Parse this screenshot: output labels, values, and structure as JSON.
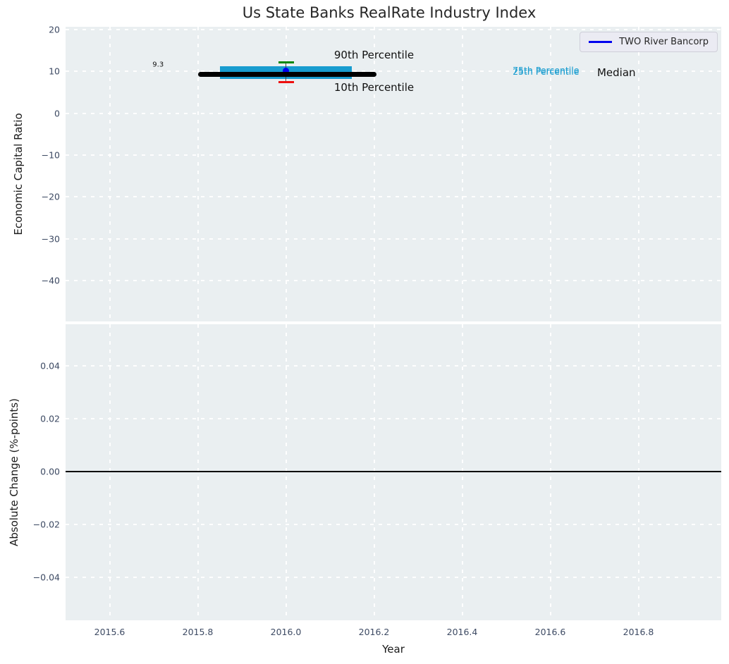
{
  "figure_title": "Us State Banks RealRate Industry Index",
  "colors": {
    "axes_background": "#eaeff1",
    "grid": "#ffffff",
    "tick_label": "#3d4a63",
    "company_blue": "#0000ee",
    "percentile_cyan": "#189ccf",
    "cap_green": "#068806",
    "cap_red": "#ee0f0f",
    "median_black": "#000000"
  },
  "chart_data": [
    {
      "panel": "economic-capital-ratio",
      "type": "line",
      "title": "Us State Banks RealRate Industry Index",
      "ylabel": "Economic Capital Ratio",
      "xlabel": "",
      "grid": true,
      "xlim": [
        2015.5,
        2016.988
      ],
      "ylim": [
        -49.8,
        20.7
      ],
      "show_xtick_labels": false,
      "xticks": [
        {
          "v": 2015.6,
          "label": "2015.6"
        },
        {
          "v": 2015.8,
          "label": "2015.8"
        },
        {
          "v": 2016.0,
          "label": "2016.0"
        },
        {
          "v": 2016.2,
          "label": "2016.2"
        },
        {
          "v": 2016.4,
          "label": "2016.4"
        },
        {
          "v": 2016.6,
          "label": "2016.6"
        },
        {
          "v": 2016.8,
          "label": "2016.8"
        }
      ],
      "yticks": [
        {
          "v": 20,
          "label": "20"
        },
        {
          "v": 10,
          "label": "10"
        },
        {
          "v": 0,
          "label": "0"
        },
        {
          "v": -10,
          "label": "−10"
        },
        {
          "v": -20,
          "label": "−20"
        },
        {
          "v": -30,
          "label": "−30"
        },
        {
          "v": -40,
          "label": "−40"
        }
      ],
      "legend": {
        "position": "upper-right",
        "entries": [
          {
            "label": "TWO River Bancorp",
            "color": "#0000ee"
          }
        ]
      },
      "series": [
        {
          "name": "25th-75th Percentile band",
          "type": "band",
          "color": "#189ccf",
          "x": [
            2015.85,
            2016.15
          ],
          "low": 8.3,
          "high": 11.3
        },
        {
          "name": "10th-90th Percentile errorbar",
          "type": "errorbar",
          "x": 2016.0,
          "low": 7.4,
          "high": 12.1,
          "stem_color": "#454545",
          "high_color": "#068806",
          "low_color": "#ee0f0f",
          "cap_width": 22,
          "cap_height": 3
        },
        {
          "name": "TWO River Bancorp",
          "type": "scatter",
          "color": "#0000ee",
          "points": [
            {
              "x": 2016.0,
              "y": 10.1
            }
          ],
          "radius": 4.5
        },
        {
          "name": "Median",
          "type": "line",
          "color": "#000000",
          "linewidth": 7,
          "rounded": true,
          "x": [
            2015.8,
            2016.205
          ],
          "y": [
            9.3,
            9.3
          ]
        }
      ],
      "annotations": [
        {
          "text": "90th Percentile",
          "x": 2016.2,
          "y": 13.9,
          "color": "#111111",
          "size": 15
        },
        {
          "text": "10th Percentile",
          "x": 2016.2,
          "y": 6.2,
          "color": "#111111",
          "size": 15
        },
        {
          "text": "75th Percentile",
          "x": 2016.59,
          "y": 10.25,
          "color": "#189ccf",
          "size": 12.5
        },
        {
          "text": "25th Percentile",
          "x": 2016.59,
          "y": 9.9,
          "color": "#189ccf",
          "size": 12.5
        },
        {
          "text": "Median",
          "x": 2016.75,
          "y": 9.7,
          "color": "#111111",
          "size": 15
        },
        {
          "text": "9.3",
          "x": 2015.71,
          "y": 11.6,
          "color": "#111111",
          "size": 10
        }
      ]
    },
    {
      "panel": "absolute-change",
      "type": "line",
      "title": "",
      "ylabel": "Absolute Change (%-points)",
      "xlabel": "Year",
      "grid": true,
      "xlim": [
        2015.5,
        2016.988
      ],
      "ylim": [
        -0.0563,
        0.0557
      ],
      "show_xtick_labels": true,
      "xticks": [
        {
          "v": 2015.6,
          "label": "2015.6"
        },
        {
          "v": 2015.8,
          "label": "2015.8"
        },
        {
          "v": 2016.0,
          "label": "2016.0"
        },
        {
          "v": 2016.2,
          "label": "2016.2"
        },
        {
          "v": 2016.4,
          "label": "2016.4"
        },
        {
          "v": 2016.6,
          "label": "2016.6"
        },
        {
          "v": 2016.8,
          "label": "2016.8"
        }
      ],
      "yticks": [
        {
          "v": 0.04,
          "label": "0.04"
        },
        {
          "v": 0.02,
          "label": "0.02"
        },
        {
          "v": 0.0,
          "label": "0.00"
        },
        {
          "v": -0.02,
          "label": "−0.02"
        },
        {
          "v": -0.04,
          "label": "−0.04"
        }
      ],
      "series": [
        {
          "name": "zero line",
          "type": "line",
          "color": "#000000",
          "linewidth": 1.6,
          "rounded": false,
          "x": [
            2015.5,
            2016.988
          ],
          "y": [
            0,
            0
          ]
        }
      ],
      "annotations": []
    }
  ]
}
